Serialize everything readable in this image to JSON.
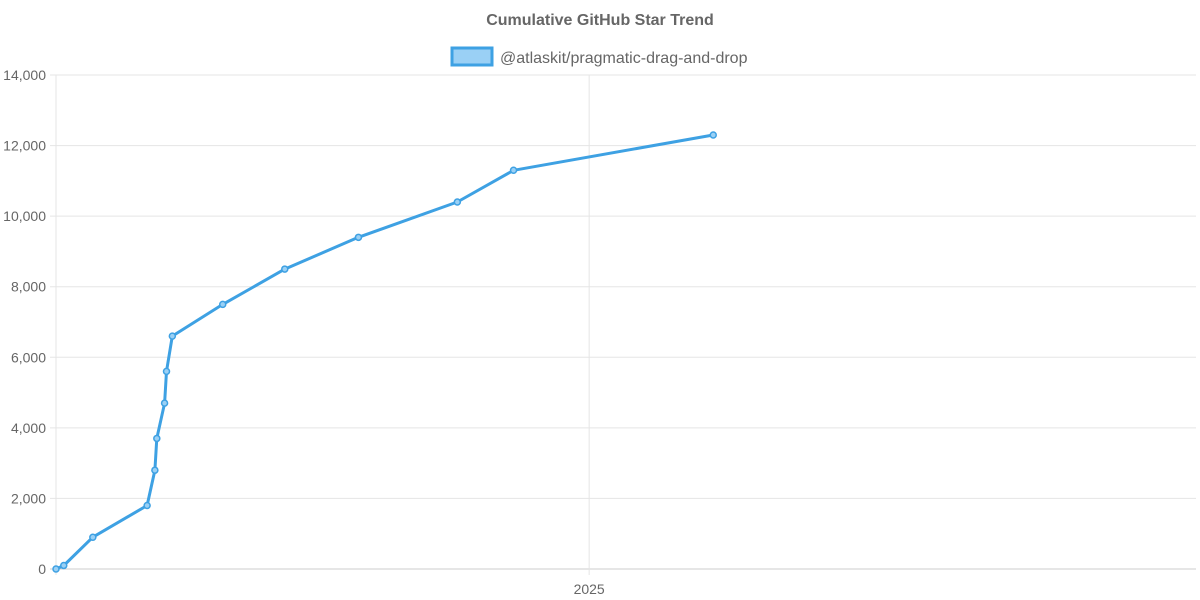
{
  "colors": {
    "series_line": "#3ea1e3",
    "series_fill": "#9ad0f5",
    "grid": "#e5e5e5",
    "text": "#666666"
  },
  "chart_data": {
    "type": "line",
    "title": "Cumulative GitHub Star Trend",
    "xlabel": "",
    "ylabel": "",
    "legend_position": "top-center",
    "grid": true,
    "x_tick_labels": [
      "2025"
    ],
    "y_tick_labels": [
      "0",
      "2,000",
      "4,000",
      "6,000",
      "8,000",
      "10,000",
      "12,000",
      "14,000"
    ],
    "xlim": [
      "2024-04-01",
      "2025-11-10"
    ],
    "ylim": [
      0,
      14000
    ],
    "series": [
      {
        "name": "@atlaskit/pragmatic-drag-and-drop",
        "points": [
          {
            "x": "2024-04-01",
            "y": 0
          },
          {
            "x": "2024-04-05",
            "y": 100
          },
          {
            "x": "2024-04-20",
            "y": 900
          },
          {
            "x": "2024-05-18",
            "y": 1800
          },
          {
            "x": "2024-05-22",
            "y": 2800
          },
          {
            "x": "2024-05-23",
            "y": 3700
          },
          {
            "x": "2024-05-27",
            "y": 4700
          },
          {
            "x": "2024-05-28",
            "y": 5600
          },
          {
            "x": "2024-05-31",
            "y": 6600
          },
          {
            "x": "2024-06-26",
            "y": 7500
          },
          {
            "x": "2024-07-28",
            "y": 8500
          },
          {
            "x": "2024-09-04",
            "y": 9400
          },
          {
            "x": "2024-10-25",
            "y": 10400
          },
          {
            "x": "2024-11-23",
            "y": 11300
          },
          {
            "x": "2025-03-06",
            "y": 12300
          }
        ]
      }
    ]
  }
}
